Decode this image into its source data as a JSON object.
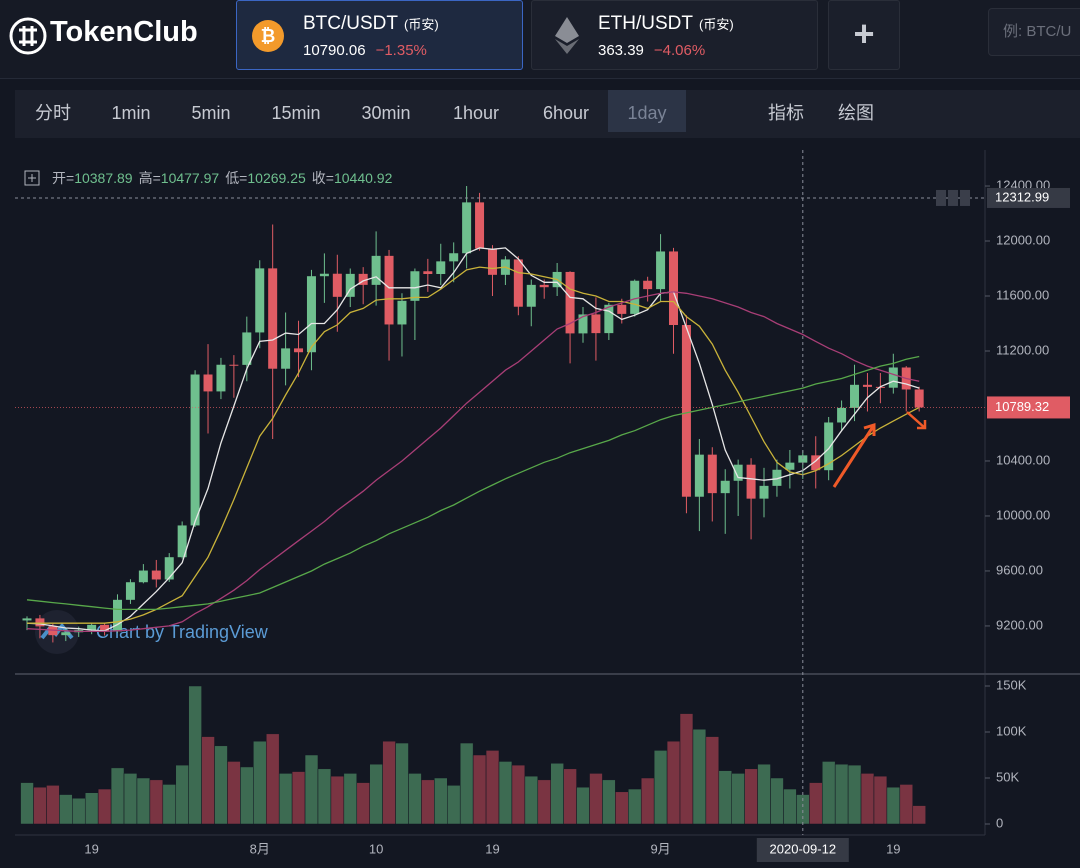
{
  "header": {
    "logo": "TokenClub",
    "tabs": [
      {
        "pair": "BTC/USDT",
        "exchange": "(币安)",
        "price": "10790.06",
        "change": "−1.35%"
      },
      {
        "pair": "ETH/USDT",
        "exchange": "(币安)",
        "price": "363.39",
        "change": "−4.06%"
      }
    ],
    "add": "+",
    "search_placeholder": "例: BTC/U"
  },
  "toolbar": {
    "intervals": [
      "分时",
      "1min",
      "5min",
      "15min",
      "30min",
      "1hour",
      "6hour",
      "1day"
    ],
    "active": "1day",
    "tools": [
      "指标",
      "绘图"
    ]
  },
  "chart_data": {
    "type": "candlestick",
    "watermark": "Chart by TradingView",
    "ohlc_labels": [
      "开=",
      "高=",
      "低=",
      "收="
    ],
    "categories": [
      null,
      null,
      null,
      null,
      null,
      "19",
      null,
      null,
      null,
      null,
      null,
      null,
      null,
      null,
      null,
      null,
      null,
      null,
      "8月",
      null,
      null,
      null,
      null,
      null,
      null,
      null,
      null,
      "10",
      null,
      null,
      null,
      null,
      null,
      null,
      null,
      null,
      "19",
      null,
      null,
      null,
      null,
      null,
      null,
      null,
      null,
      null,
      null,
      null,
      null,
      "9月",
      null,
      null,
      null,
      null,
      null,
      null,
      null,
      null,
      null,
      null,
      null,
      null,
      null,
      null,
      null,
      null,
      null,
      "19",
      null,
      null
    ],
    "open": [
      9240,
      9255,
      9197,
      9133,
      9154,
      9170,
      9208,
      9160,
      9390,
      9518,
      9603,
      9538,
      9700,
      9931,
      11029,
      10906,
      11100,
      11099,
      11335,
      11801,
      11071,
      11219,
      11191,
      11744,
      11762,
      11594,
      11761,
      11681,
      11892,
      11393,
      11565,
      11780,
      11760,
      11852,
      11911,
      12281,
      11945,
      11754,
      11866,
      11522,
      11681,
      11664,
      11775,
      11328,
      11466,
      11330,
      11536,
      11470,
      11711,
      11650,
      11924,
      11389,
      10140,
      10446,
      10166,
      10256,
      10373,
      10126,
      10219,
      10336,
      10387.89,
      10440.92,
      10333,
      10680,
      10786,
      10954,
      10939,
      10933,
      11080,
      10920
    ],
    "high": [
      9270,
      9280,
      9215,
      9185,
      9195,
      9225,
      9220,
      9430,
      9540,
      9650,
      9680,
      9730,
      9960,
      11060,
      11250,
      11150,
      11170,
      11450,
      11860,
      12120,
      11480,
      11420,
      11790,
      11910,
      11900,
      11800,
      11810,
      12070,
      11935,
      11620,
      11800,
      11870,
      11980,
      11990,
      12400,
      12350,
      11970,
      11890,
      11890,
      11720,
      11720,
      11840,
      11780,
      11520,
      11590,
      11550,
      11580,
      11720,
      11740,
      12050,
      11950,
      11460,
      10560,
      10500,
      10340,
      10410,
      10420,
      10350,
      10410,
      10480,
      10477.97,
      10580,
      10720,
      10840,
      11100,
      11040,
      11040,
      11180,
      11090,
      10940
    ],
    "low": [
      9170,
      9110,
      9080,
      9090,
      9120,
      9140,
      9130,
      9150,
      9360,
      9510,
      9480,
      9520,
      9690,
      9920,
      10600,
      10850,
      10860,
      10980,
      11220,
      10560,
      10950,
      11010,
      11060,
      11550,
      11340,
      11520,
      11540,
      11530,
      11130,
      11160,
      11280,
      11630,
      11680,
      11700,
      11800,
      11930,
      11600,
      11680,
      11460,
      11380,
      11580,
      11600,
      11110,
      11260,
      11130,
      11280,
      11400,
      11450,
      11560,
      11560,
      11180,
      10020,
      9890,
      9960,
      9870,
      10000,
      9830,
      9990,
      10140,
      10200,
      10269.25,
      10200,
      10260,
      10620,
      10690,
      10760,
      10820,
      10890,
      10760,
      10760
    ],
    "close": [
      9255,
      9197,
      9133,
      9154,
      9170,
      9208,
      9160,
      9390,
      9518,
      9603,
      9538,
      9700,
      9931,
      11029,
      10906,
      11100,
      11099,
      11335,
      11801,
      11071,
      11219,
      11191,
      11744,
      11762,
      11594,
      11761,
      11681,
      11892,
      11393,
      11565,
      11780,
      11760,
      11852,
      11911,
      12281,
      11945,
      11754,
      11866,
      11522,
      11681,
      11664,
      11775,
      11328,
      11466,
      11330,
      11536,
      11470,
      11711,
      11650,
      11924,
      11389,
      10140,
      10446,
      10166,
      10256,
      10373,
      10126,
      10219,
      10336,
      10387.89,
      10440.92,
      10333,
      10680,
      10786,
      10954,
      10939,
      10933,
      11080,
      10920,
      10789.32
    ],
    "volume": [
      45000,
      40000,
      42000,
      32000,
      28000,
      34000,
      38000,
      61000,
      55000,
      50000,
      48000,
      43000,
      64000,
      150000,
      95000,
      85000,
      68000,
      62000,
      90000,
      98000,
      55000,
      57000,
      75000,
      60000,
      52000,
      55000,
      45000,
      65000,
      90000,
      88000,
      55000,
      48000,
      50000,
      42000,
      88000,
      75000,
      80000,
      68000,
      64000,
      52000,
      48000,
      66000,
      60000,
      40000,
      55000,
      48000,
      35000,
      38000,
      50000,
      80000,
      90000,
      120000,
      103000,
      95000,
      58000,
      55000,
      60000,
      65000,
      50000,
      38000,
      32000,
      45000,
      68000,
      65000,
      64000,
      55000,
      52000,
      40000,
      43000,
      20000
    ],
    "series": [
      {
        "color": "#e6e6e6",
        "values": [
          9220,
          9215,
          9200,
          9185,
          9180,
          9170,
          9165,
          9210,
          9270,
          9360,
          9450,
          9550,
          9660,
          9960,
          10200,
          10530,
          10800,
          11070,
          11270,
          11280,
          11330,
          11320,
          11400,
          11400,
          11500,
          11650,
          11710,
          11740,
          11660,
          11660,
          11660,
          11680,
          11660,
          11770,
          11910,
          11950,
          11940,
          11950,
          11870,
          11750,
          11700,
          11700,
          11590,
          11580,
          11510,
          11490,
          11430,
          11460,
          11500,
          11620,
          11630,
          11370,
          11110,
          10810,
          10480,
          10280,
          10270,
          10260,
          10270,
          10300,
          10330,
          10400,
          10490,
          10620,
          10740,
          10860,
          10940,
          10980,
          10960,
          10930
        ]
      },
      {
        "color": "#c9b33a",
        "values": [
          9220,
          9220,
          9220,
          9220,
          9220,
          9220,
          9220,
          9230,
          9250,
          9280,
          9320,
          9370,
          9420,
          9560,
          9700,
          9900,
          10120,
          10350,
          10580,
          10710,
          10880,
          11040,
          11230,
          11340,
          11390,
          11480,
          11510,
          11570,
          11580,
          11580,
          11590,
          11590,
          11650,
          11720,
          11790,
          11810,
          11800,
          11810,
          11770,
          11760,
          11740,
          11720,
          11650,
          11620,
          11600,
          11560,
          11560,
          11540,
          11510,
          11560,
          11560,
          11450,
          11380,
          11250,
          11060,
          10900,
          10720,
          10540,
          10390,
          10320,
          10300,
          10330,
          10380,
          10440,
          10510,
          10580,
          10640,
          10690,
          10740,
          10790
        ]
      },
      {
        "color": "#a83e76",
        "values": [
          9180,
          9175,
          9170,
          9165,
          9160,
          9160,
          9160,
          9165,
          9170,
          9180,
          9190,
          9200,
          9230,
          9290,
          9340,
          9400,
          9460,
          9530,
          9610,
          9680,
          9750,
          9820,
          9890,
          9960,
          10040,
          10110,
          10180,
          10260,
          10330,
          10400,
          10480,
          10560,
          10640,
          10730,
          10820,
          10900,
          10980,
          11060,
          11120,
          11200,
          11280,
          11360,
          11400,
          11450,
          11480,
          11520,
          11550,
          11580,
          11600,
          11620,
          11630,
          11620,
          11600,
          11580,
          11550,
          11520,
          11480,
          11450,
          11400,
          11360,
          11320,
          11270,
          11220,
          11180,
          11130,
          11090,
          11060,
          11030,
          11000,
          10980
        ]
      },
      {
        "color": "#58a84a",
        "values": [
          9390,
          9380,
          9370,
          9360,
          9350,
          9340,
          9330,
          9320,
          9320,
          9320,
          9320,
          9330,
          9340,
          9350,
          9360,
          9380,
          9400,
          9420,
          9440,
          9480,
          9520,
          9560,
          9600,
          9650,
          9690,
          9730,
          9780,
          9820,
          9870,
          9910,
          9950,
          9990,
          10040,
          10080,
          10130,
          10180,
          10225,
          10270,
          10310,
          10350,
          10390,
          10420,
          10460,
          10490,
          10520,
          10550,
          10590,
          10620,
          10660,
          10700,
          10730,
          10750,
          10770,
          10790,
          10810,
          10830,
          10850,
          10870,
          10890,
          10910,
          10930,
          10960,
          10980,
          11000,
          11030,
          11060,
          11090,
          11110,
          11140,
          11160
        ]
      }
    ],
    "up_color": "#6fbf8e",
    "down_color": "#e05c64",
    "up_volume_color": "#3d6b52",
    "down_volume_color": "#7a3442",
    "ylim": [
      8865,
      12662
    ],
    "yticks": [
      {
        "value": 9200,
        "label": "9200.00"
      },
      {
        "value": 9600,
        "label": "9600.00"
      },
      {
        "value": 10000,
        "label": "10000.00"
      },
      {
        "value": 10400,
        "label": "10400.00"
      },
      {
        "value": 11200,
        "label": "11200.00"
      },
      {
        "value": 11600,
        "label": "11600.00"
      },
      {
        "value": 12000,
        "label": "12000.00"
      },
      {
        "value": 12400,
        "label": "12400.00"
      }
    ],
    "volume_ylim": [
      -11957,
      161957
    ],
    "volume_ticks": [
      0,
      {
        "value": 50000,
        "label": "50K"
      },
      {
        "value": 100000,
        "label": "100K"
      },
      {
        "value": 150000,
        "label": "150K"
      }
    ],
    "crosshair_date": "2020-09-12",
    "crosshair_price": {
      "value": 12312.99,
      "label": "12312.99"
    },
    "last_price": {
      "value": 10789.32,
      "label": "10789.32"
    },
    "grid": false
  }
}
